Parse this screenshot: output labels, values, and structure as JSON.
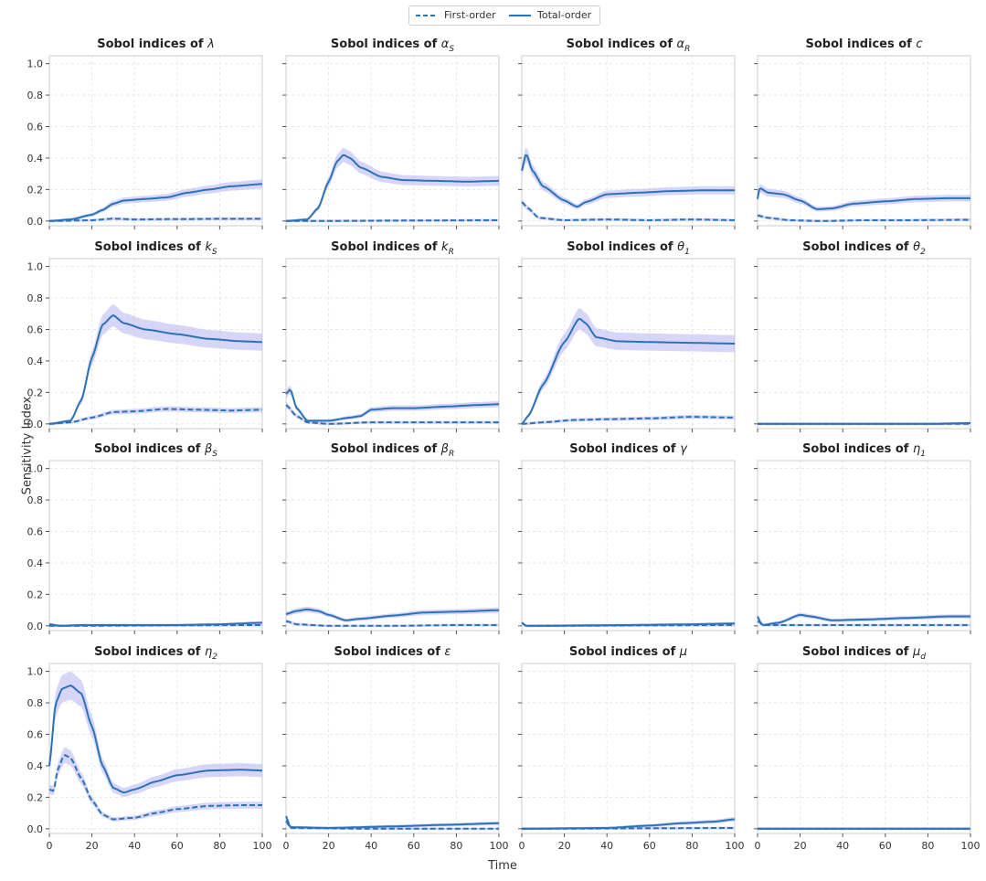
{
  "legend": {
    "first_label": "First-order",
    "total_label": "Total-order"
  },
  "colors": {
    "line": "#2b73b9",
    "band": "#b7b5f2",
    "grid": "#e6e6e6",
    "axis": "#cccccc"
  },
  "chart_data": {
    "type": "line",
    "xlabel": "Time",
    "ylabel": "Sensitivity Index",
    "xlim": [
      0,
      100
    ],
    "ylim": [
      -0.03,
      1.05
    ],
    "xticks": [
      0,
      20,
      40,
      60,
      80,
      100
    ],
    "yticks": [
      0.0,
      0.2,
      0.4,
      0.6,
      0.8,
      1.0
    ],
    "panels": [
      {
        "title_prefix": "Sobol indices of ",
        "symbol": "λ",
        "sub": "",
        "first": [
          [
            0,
            0
          ],
          [
            20,
            0.005
          ],
          [
            30,
            0.015
          ],
          [
            40,
            0.01
          ],
          [
            60,
            0.012
          ],
          [
            80,
            0.014
          ],
          [
            100,
            0.014
          ]
        ],
        "total": [
          [
            0,
            0
          ],
          [
            10,
            0.01
          ],
          [
            20,
            0.04
          ],
          [
            25,
            0.07
          ],
          [
            30,
            0.11
          ],
          [
            35,
            0.13
          ],
          [
            45,
            0.14
          ],
          [
            55,
            0.15
          ],
          [
            65,
            0.18
          ],
          [
            75,
            0.2
          ],
          [
            85,
            0.22
          ],
          [
            100,
            0.235
          ]
        ]
      },
      {
        "title_prefix": "Sobol indices of ",
        "symbol": "α",
        "sub": "S",
        "first": [
          [
            0,
            0
          ],
          [
            100,
            0.005
          ]
        ],
        "total": [
          [
            0,
            0
          ],
          [
            10,
            0.01
          ],
          [
            15,
            0.08
          ],
          [
            20,
            0.25
          ],
          [
            24,
            0.38
          ],
          [
            27,
            0.42
          ],
          [
            30,
            0.4
          ],
          [
            35,
            0.34
          ],
          [
            45,
            0.28
          ],
          [
            55,
            0.26
          ],
          [
            70,
            0.255
          ],
          [
            85,
            0.25
          ],
          [
            100,
            0.255
          ]
        ]
      },
      {
        "title_prefix": "Sobol indices of ",
        "symbol": "α",
        "sub": "R",
        "first": [
          [
            0,
            0.12
          ],
          [
            3,
            0.08
          ],
          [
            8,
            0.02
          ],
          [
            20,
            0.005
          ],
          [
            40,
            0.01
          ],
          [
            60,
            0.005
          ],
          [
            80,
            0.01
          ],
          [
            100,
            0.005
          ]
        ],
        "total": [
          [
            0,
            0.32
          ],
          [
            2,
            0.43
          ],
          [
            5,
            0.32
          ],
          [
            10,
            0.22
          ],
          [
            20,
            0.13
          ],
          [
            26,
            0.09
          ],
          [
            30,
            0.12
          ],
          [
            40,
            0.17
          ],
          [
            55,
            0.18
          ],
          [
            70,
            0.19
          ],
          [
            85,
            0.195
          ],
          [
            100,
            0.195
          ]
        ]
      },
      {
        "title_prefix": "Sobol indices of ",
        "symbol": "c",
        "sub": "",
        "first": [
          [
            0,
            0.035
          ],
          [
            5,
            0.02
          ],
          [
            15,
            0.005
          ],
          [
            30,
            0.0
          ],
          [
            50,
            0.005
          ],
          [
            70,
            0.005
          ],
          [
            100,
            0.008
          ]
        ],
        "total": [
          [
            0,
            0.14
          ],
          [
            1,
            0.21
          ],
          [
            5,
            0.18
          ],
          [
            12,
            0.17
          ],
          [
            20,
            0.13
          ],
          [
            28,
            0.075
          ],
          [
            35,
            0.08
          ],
          [
            45,
            0.11
          ],
          [
            60,
            0.125
          ],
          [
            75,
            0.14
          ],
          [
            90,
            0.145
          ],
          [
            100,
            0.145
          ]
        ]
      },
      {
        "title_prefix": "Sobol indices of ",
        "symbol": "k",
        "sub": "S",
        "first": [
          [
            0,
            0
          ],
          [
            10,
            0.01
          ],
          [
            20,
            0.04
          ],
          [
            30,
            0.075
          ],
          [
            40,
            0.08
          ],
          [
            55,
            0.095
          ],
          [
            70,
            0.09
          ],
          [
            85,
            0.085
          ],
          [
            100,
            0.09
          ]
        ],
        "total": [
          [
            0,
            0
          ],
          [
            10,
            0.02
          ],
          [
            15,
            0.15
          ],
          [
            20,
            0.42
          ],
          [
            25,
            0.63
          ],
          [
            30,
            0.69
          ],
          [
            35,
            0.64
          ],
          [
            45,
            0.6
          ],
          [
            60,
            0.57
          ],
          [
            75,
            0.54
          ],
          [
            90,
            0.525
          ],
          [
            100,
            0.52
          ]
        ]
      },
      {
        "title_prefix": "Sobol indices of ",
        "symbol": "k",
        "sub": "R",
        "first": [
          [
            0,
            0.12
          ],
          [
            5,
            0.05
          ],
          [
            10,
            0.01
          ],
          [
            20,
            0.0
          ],
          [
            40,
            0.01
          ],
          [
            60,
            0.01
          ],
          [
            100,
            0.01
          ]
        ],
        "total": [
          [
            0,
            0.19
          ],
          [
            2,
            0.22
          ],
          [
            5,
            0.1
          ],
          [
            10,
            0.02
          ],
          [
            20,
            0.02
          ],
          [
            30,
            0.04
          ],
          [
            35,
            0.05
          ],
          [
            40,
            0.09
          ],
          [
            50,
            0.1
          ],
          [
            60,
            0.1
          ],
          [
            75,
            0.11
          ],
          [
            90,
            0.12
          ],
          [
            100,
            0.125
          ]
        ]
      },
      {
        "title_prefix": "Sobol indices of ",
        "symbol": "θ",
        "sub": "1",
        "first": [
          [
            0,
            0
          ],
          [
            10,
            0.01
          ],
          [
            25,
            0.025
          ],
          [
            40,
            0.03
          ],
          [
            60,
            0.035
          ],
          [
            80,
            0.045
          ],
          [
            100,
            0.04
          ]
        ],
        "total": [
          [
            0,
            0
          ],
          [
            3,
            0.05
          ],
          [
            10,
            0.25
          ],
          [
            20,
            0.52
          ],
          [
            27,
            0.67
          ],
          [
            30,
            0.64
          ],
          [
            35,
            0.55
          ],
          [
            45,
            0.525
          ],
          [
            60,
            0.52
          ],
          [
            80,
            0.515
          ],
          [
            100,
            0.51
          ]
        ]
      },
      {
        "title_prefix": "Sobol indices of ",
        "symbol": "θ",
        "sub": "2",
        "first": [
          [
            0,
            0
          ],
          [
            100,
            0.0
          ]
        ],
        "total": [
          [
            0,
            0
          ],
          [
            80,
            0.0
          ],
          [
            100,
            0.005
          ]
        ]
      },
      {
        "title_prefix": "Sobol indices of ",
        "symbol": "β",
        "sub": "S",
        "first": [
          [
            0,
            0
          ],
          [
            100,
            0.005
          ]
        ],
        "total": [
          [
            0,
            0.01
          ],
          [
            5,
            0.0
          ],
          [
            15,
            0.005
          ],
          [
            30,
            0.005
          ],
          [
            60,
            0.005
          ],
          [
            80,
            0.01
          ],
          [
            100,
            0.02
          ]
        ]
      },
      {
        "title_prefix": "Sobol indices of ",
        "symbol": "β",
        "sub": "R",
        "first": [
          [
            0,
            0.03
          ],
          [
            5,
            0.01
          ],
          [
            20,
            0.0
          ],
          [
            50,
            0.0
          ],
          [
            80,
            0.005
          ],
          [
            100,
            0.005
          ]
        ],
        "total": [
          [
            0,
            0.075
          ],
          [
            5,
            0.095
          ],
          [
            10,
            0.105
          ],
          [
            15,
            0.095
          ],
          [
            20,
            0.07
          ],
          [
            28,
            0.035
          ],
          [
            35,
            0.045
          ],
          [
            50,
            0.065
          ],
          [
            65,
            0.085
          ],
          [
            80,
            0.09
          ],
          [
            100,
            0.1
          ]
        ]
      },
      {
        "title_prefix": "Sobol indices of ",
        "symbol": "γ",
        "sub": "",
        "first": [
          [
            0,
            0.02
          ],
          [
            2,
            0.0
          ],
          [
            100,
            0.005
          ]
        ],
        "total": [
          [
            0,
            0.02
          ],
          [
            2,
            0.0
          ],
          [
            50,
            0.005
          ],
          [
            80,
            0.01
          ],
          [
            100,
            0.015
          ]
        ]
      },
      {
        "title_prefix": "Sobol indices of ",
        "symbol": "η",
        "sub": "1",
        "first": [
          [
            0,
            0.03
          ],
          [
            3,
            0.005
          ],
          [
            100,
            0.005
          ]
        ],
        "total": [
          [
            0,
            0.06
          ],
          [
            2,
            0.005
          ],
          [
            10,
            0.02
          ],
          [
            20,
            0.07
          ],
          [
            25,
            0.06
          ],
          [
            35,
            0.035
          ],
          [
            50,
            0.04
          ],
          [
            70,
            0.05
          ],
          [
            90,
            0.06
          ],
          [
            100,
            0.06
          ]
        ]
      },
      {
        "title_prefix": "Sobol indices of ",
        "symbol": "η",
        "sub": "2",
        "first": [
          [
            0,
            0.25
          ],
          [
            2,
            0.24
          ],
          [
            4,
            0.38
          ],
          [
            7,
            0.47
          ],
          [
            10,
            0.45
          ],
          [
            15,
            0.32
          ],
          [
            20,
            0.18
          ],
          [
            25,
            0.09
          ],
          [
            30,
            0.06
          ],
          [
            40,
            0.07
          ],
          [
            50,
            0.1
          ],
          [
            60,
            0.125
          ],
          [
            75,
            0.145
          ],
          [
            90,
            0.15
          ],
          [
            100,
            0.15
          ]
        ],
        "total": [
          [
            0,
            0.4
          ],
          [
            3,
            0.8
          ],
          [
            6,
            0.89
          ],
          [
            10,
            0.91
          ],
          [
            15,
            0.86
          ],
          [
            20,
            0.65
          ],
          [
            25,
            0.4
          ],
          [
            30,
            0.26
          ],
          [
            35,
            0.23
          ],
          [
            40,
            0.25
          ],
          [
            50,
            0.3
          ],
          [
            60,
            0.34
          ],
          [
            75,
            0.37
          ],
          [
            90,
            0.375
          ],
          [
            100,
            0.37
          ]
        ]
      },
      {
        "title_prefix": "Sobol indices of ",
        "symbol": "ε",
        "sub": "",
        "first": [
          [
            0,
            0.05
          ],
          [
            2,
            0.005
          ],
          [
            40,
            0.0
          ],
          [
            100,
            0.0
          ]
        ],
        "total": [
          [
            0,
            0.08
          ],
          [
            2,
            0.01
          ],
          [
            20,
            0.005
          ],
          [
            50,
            0.015
          ],
          [
            75,
            0.025
          ],
          [
            100,
            0.035
          ]
        ]
      },
      {
        "title_prefix": "Sobol indices of ",
        "symbol": "μ",
        "sub": "",
        "first": [
          [
            0,
            0
          ],
          [
            100,
            0.005
          ]
        ],
        "total": [
          [
            0,
            0
          ],
          [
            40,
            0.005
          ],
          [
            60,
            0.02
          ],
          [
            75,
            0.035
          ],
          [
            90,
            0.045
          ],
          [
            100,
            0.06
          ]
        ]
      },
      {
        "title_prefix": "Sobol indices of ",
        "symbol": "μ",
        "sub": "d",
        "first": [
          [
            0,
            0
          ],
          [
            100,
            0.0
          ]
        ],
        "total": [
          [
            0,
            0
          ],
          [
            100,
            0.0
          ]
        ]
      }
    ]
  }
}
